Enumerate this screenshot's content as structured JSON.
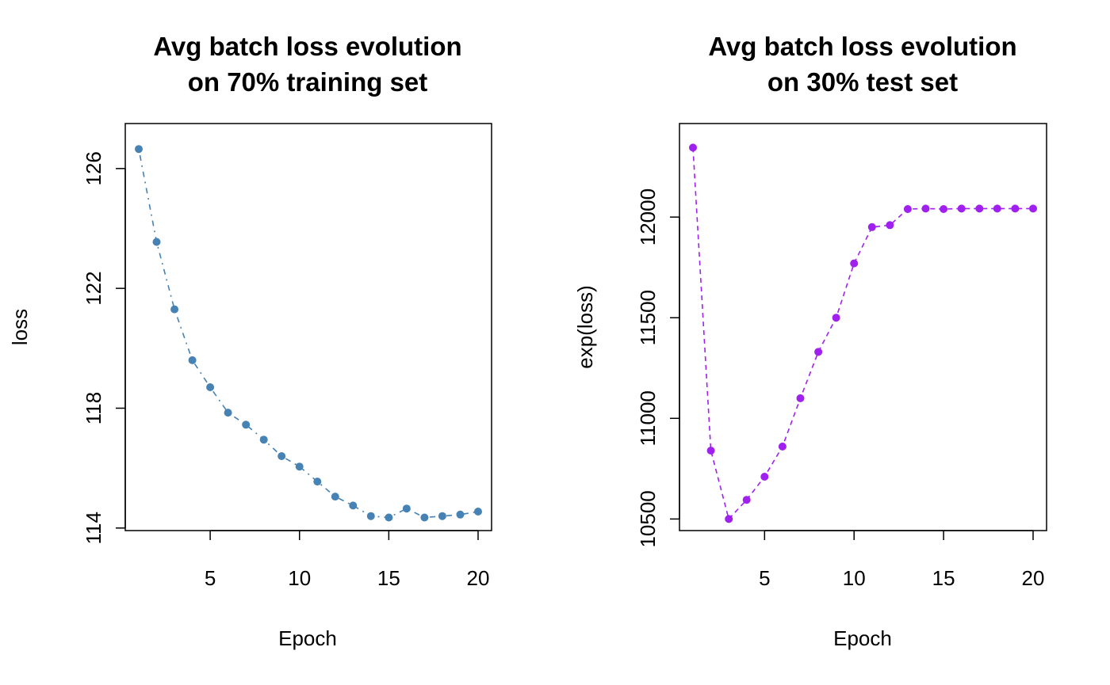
{
  "chart_data": [
    {
      "type": "scatter",
      "title_line1": "Avg batch loss evolution",
      "title_line2": "on 70% training set",
      "xlabel": "Epoch",
      "ylabel": "loss",
      "color": "#4682B4",
      "line_style": "dotdash",
      "xlim": [
        1,
        20
      ],
      "ylim": [
        114.1,
        127.0
      ],
      "x_ticks": [
        5,
        10,
        15,
        20
      ],
      "y_ticks": [
        114,
        118,
        122,
        126
      ],
      "grid": false,
      "series": [
        {
          "x": [
            1,
            2,
            3,
            4,
            5,
            6,
            7,
            8,
            9,
            10,
            11,
            12,
            13,
            14,
            15,
            16,
            17,
            18,
            19,
            20
          ],
          "y": [
            126.65,
            123.55,
            121.3,
            119.6,
            118.7,
            117.85,
            117.45,
            116.95,
            116.4,
            116.05,
            115.55,
            115.05,
            114.75,
            114.4,
            114.35,
            114.65,
            114.35,
            114.4,
            114.45,
            114.55
          ]
        }
      ]
    },
    {
      "type": "scatter",
      "title_line1": "Avg batch loss evolution",
      "title_line2": "on 30% test set",
      "xlabel": "Epoch",
      "ylabel": "exp(loss)",
      "color": "#A020F0",
      "line_style": "dashed",
      "xlim": [
        1,
        20
      ],
      "ylim": [
        10470,
        12390
      ],
      "x_ticks": [
        5,
        10,
        15,
        20
      ],
      "y_ticks": [
        10500,
        11000,
        11500,
        12000
      ],
      "grid": false,
      "series": [
        {
          "x": [
            1,
            2,
            3,
            4,
            5,
            6,
            7,
            8,
            9,
            10,
            11,
            12,
            13,
            14,
            15,
            16,
            17,
            18,
            19,
            20
          ],
          "y": [
            12345,
            10840,
            10500,
            10595,
            10710,
            10860,
            11100,
            11330,
            11500,
            11770,
            11950,
            11960,
            12040,
            12042,
            12040,
            12042,
            12042,
            12042,
            12042,
            12042
          ]
        }
      ]
    }
  ]
}
